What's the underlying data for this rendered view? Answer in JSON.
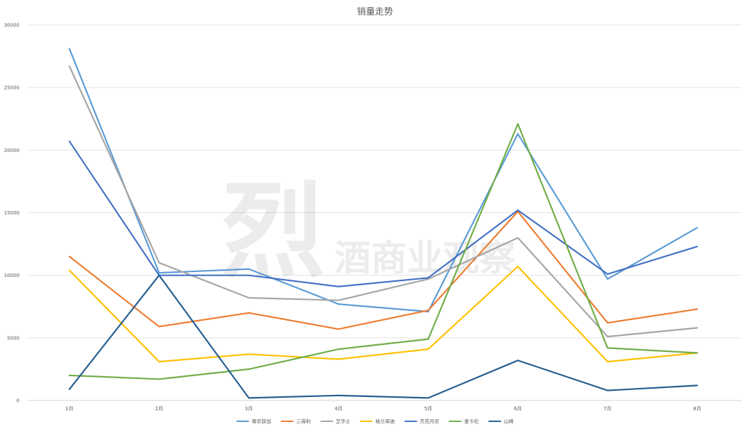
{
  "chart_data": {
    "type": "line",
    "title": "销量走势",
    "categories": [
      "1月",
      "2月",
      "3月",
      "4月",
      "5月",
      "6月",
      "7月",
      "8月"
    ],
    "ylim": [
      0,
      30000
    ],
    "yticks": [
      0,
      5000,
      10000,
      15000,
      20000,
      25000,
      30000
    ],
    "grid": true,
    "legend_position": "bottom",
    "series": [
      {
        "name": "尊尼获加",
        "color": "#5B9BD5",
        "values": [
          28100,
          10200,
          10500,
          7700,
          7100,
          21300,
          9700,
          13800
        ]
      },
      {
        "name": "三得利",
        "color": "#ED7D31",
        "values": [
          11500,
          5900,
          7000,
          5700,
          7200,
          15100,
          6200,
          7300
        ]
      },
      {
        "name": "芝华士",
        "color": "#A5A5A5",
        "values": [
          26700,
          11000,
          8200,
          8000,
          9700,
          13000,
          5100,
          5800
        ]
      },
      {
        "name": "格兰菲迪",
        "color": "#FFC000",
        "values": [
          10400,
          3100,
          3700,
          3300,
          4100,
          10700,
          3100,
          3800
        ]
      },
      {
        "name": "杰克丹尼",
        "color": "#4472C4",
        "values": [
          20700,
          10000,
          10000,
          9100,
          9800,
          15200,
          10100,
          12300
        ]
      },
      {
        "name": "麦卡伦",
        "color": "#70AD47",
        "values": [
          2000,
          1700,
          2500,
          4100,
          4900,
          22100,
          4200,
          3800
        ]
      },
      {
        "name": "山崎",
        "color": "#255E91",
        "values": [
          900,
          10000,
          200,
          400,
          200,
          3200,
          800,
          1200
        ]
      }
    ]
  },
  "watermark": {
    "brand": "烈",
    "text": "酒商业观察"
  }
}
